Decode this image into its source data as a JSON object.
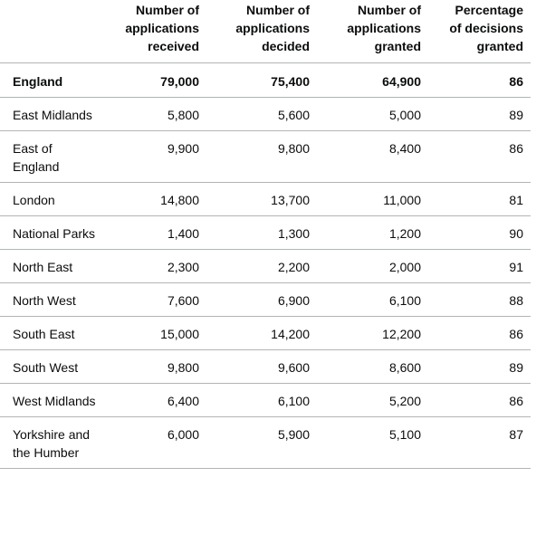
{
  "table": {
    "headers": [
      "",
      "Number of applications received",
      "Number of applications decided",
      "Number of applications granted",
      "Percentage of decisions granted"
    ],
    "rows": [
      {
        "name": "England",
        "received": "79,000",
        "decided": "75,400",
        "granted": "64,900",
        "percent": "86"
      },
      {
        "name": "East Midlands",
        "received": "5,800",
        "decided": "5,600",
        "granted": "5,000",
        "percent": "89"
      },
      {
        "name": "East of England",
        "received": "9,900",
        "decided": "9,800",
        "granted": "8,400",
        "percent": "86"
      },
      {
        "name": "London",
        "received": "14,800",
        "decided": "13,700",
        "granted": "11,000",
        "percent": "81"
      },
      {
        "name": "National Parks",
        "received": "1,400",
        "decided": "1,300",
        "granted": "1,200",
        "percent": "90"
      },
      {
        "name": "North East",
        "received": "2,300",
        "decided": "2,200",
        "granted": "2,000",
        "percent": "91"
      },
      {
        "name": "North West",
        "received": "7,600",
        "decided": "6,900",
        "granted": "6,100",
        "percent": "88"
      },
      {
        "name": "South East",
        "received": "15,000",
        "decided": "14,200",
        "granted": "12,200",
        "percent": "86"
      },
      {
        "name": "South West",
        "received": "9,800",
        "decided": "9,600",
        "granted": "8,600",
        "percent": "89"
      },
      {
        "name": "West Midlands",
        "received": "6,400",
        "decided": "6,100",
        "granted": "5,200",
        "percent": "86"
      },
      {
        "name": "Yorkshire and the Humber",
        "received": "6,000",
        "decided": "5,900",
        "granted": "5,100",
        "percent": "87"
      }
    ]
  }
}
